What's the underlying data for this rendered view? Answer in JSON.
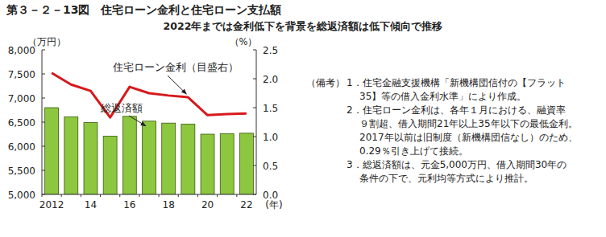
{
  "chart_data": {
    "type": "bar",
    "title": "第３－２－13図　住宅ローン金利と住宅ローン支払額",
    "subtitle": "2022年までは金利低下を背景を総返済額は低下傾向で推移",
    "categories": [
      "2012",
      null,
      "14",
      null,
      "16",
      null,
      "18",
      null,
      "20",
      null,
      "22"
    ],
    "x_unit": "(年)",
    "y_unit": "（万円）",
    "y2_unit": "（%）",
    "ylim": [
      5000,
      8000
    ],
    "yticks": [
      {
        "value": 5000,
        "label": "5,000"
      },
      {
        "value": 5500,
        "label": "5,500"
      },
      {
        "value": 6000,
        "label": "6,000"
      },
      {
        "value": 6500,
        "label": "6,500"
      },
      {
        "value": 7000,
        "label": "7,000"
      },
      {
        "value": 7500,
        "label": "7,500"
      },
      {
        "value": 8000,
        "label": "8,000"
      }
    ],
    "y2lim": [
      0,
      2.5
    ],
    "y2ticks": [
      {
        "value": 0,
        "label": "0.0"
      },
      {
        "value": 0.5,
        "label": "0.5"
      },
      {
        "value": 1,
        "label": "1.0"
      },
      {
        "value": 1.5,
        "label": "1.5"
      },
      {
        "value": 2,
        "label": "2.0"
      },
      {
        "value": 2.5,
        "label": "2.5"
      }
    ],
    "grid": false,
    "series": [
      {
        "name": "住宅ローン金利（目盛右）",
        "type": "line",
        "axis": "y2",
        "color": "#d7191c",
        "values": [
          2.1,
          1.9,
          1.79,
          1.33,
          1.86,
          1.75,
          1.71,
          1.68,
          1.37,
          1.39,
          1.4
        ]
      },
      {
        "name": "総返済額",
        "type": "bar",
        "color": "#8dc63f",
        "values": [
          6800,
          6610,
          6490,
          6210,
          6620,
          6520,
          6480,
          6460,
          6250,
          6260,
          6270
        ]
      }
    ],
    "notes_label": "（備考）",
    "notes": [
      [
        "1．住宅金融支援機構「新機構団信付の【フラット",
        "35】等の借入金利水準」により作成。"
      ],
      [
        "2．住宅ローン金利は、各年１月における、融資率",
        "９割超、借入期間21年以上35年以下の最低金利。",
        "2017年以前は旧制度（新機構団信なし）のため、",
        "0.29％引き上げて接続。"
      ],
      [
        "3．総返済額は、元金5,000万円、借入期間30年の",
        "条件の下で、元利均等方式により推計。"
      ]
    ]
  }
}
